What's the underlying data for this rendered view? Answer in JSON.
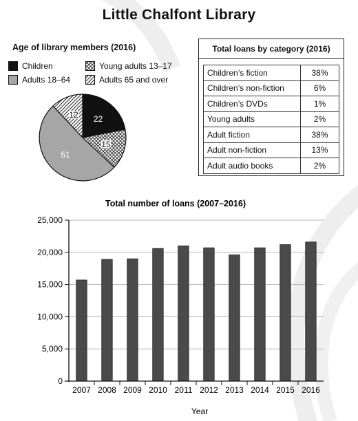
{
  "title": "Little Chalfont Library",
  "chart_data": [
    {
      "type": "pie",
      "title": "Age of library members (2016)",
      "slices": [
        {
          "name": "Children",
          "value": 22,
          "pattern": "solid-black"
        },
        {
          "name": "Young adults 13–17",
          "value": 15,
          "pattern": "crosshatch"
        },
        {
          "name": "Adults 18–64",
          "value": 51,
          "pattern": "solid-gray"
        },
        {
          "name": "Adults 65 and over",
          "value": 12,
          "pattern": "diagonal-lines"
        }
      ],
      "legend_placement": "top"
    },
    {
      "type": "table",
      "title": "Total loans by category (2016)",
      "rows": [
        {
          "category": "Children’s fiction",
          "value": "38%"
        },
        {
          "category": "Children’s non-fiction",
          "value": "6%"
        },
        {
          "category": "Children’s DVDs",
          "value": "1%"
        },
        {
          "category": "Young adults",
          "value": "2%"
        },
        {
          "category": "Adult fiction",
          "value": "38%"
        },
        {
          "category": "Adult non-fiction",
          "value": "13%"
        },
        {
          "category": "Adult audio books",
          "value": "2%"
        }
      ]
    },
    {
      "type": "bar",
      "title": "Total number of loans (2007–2016)",
      "xlabel": "Year",
      "ylabel": "",
      "categories": [
        "2007",
        "2008",
        "2009",
        "2010",
        "2011",
        "2012",
        "2013",
        "2014",
        "2015",
        "2016"
      ],
      "values": [
        15700,
        18900,
        19000,
        20600,
        21000,
        20700,
        19600,
        20700,
        21200,
        21600
      ],
      "ylim": [
        0,
        25000
      ],
      "yticks": [
        "0",
        "5,000",
        "10,000",
        "15,000",
        "20,000",
        "25,000"
      ],
      "grid": true,
      "bar_color": "#4a4a4a"
    }
  ]
}
